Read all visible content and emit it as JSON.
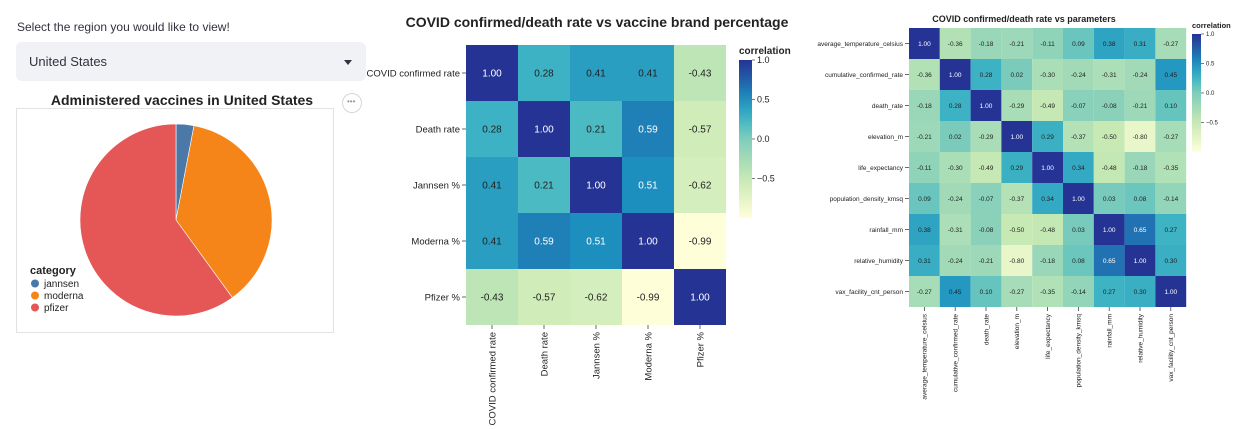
{
  "selector": {
    "label": "Select the region you would like to view!",
    "value": "United States"
  },
  "chart_data": [
    {
      "type": "pie",
      "title": "Administered vaccines in United States",
      "legend_title": "category",
      "legend_position": "bottom-left",
      "slices": [
        {
          "label": "jannsen",
          "value": 3,
          "color": "#4c78a8"
        },
        {
          "label": "moderna",
          "value": 37,
          "color": "#f58518"
        },
        {
          "label": "pfizer",
          "value": 60,
          "color": "#e45756"
        }
      ]
    },
    {
      "type": "heatmap",
      "title": "COVID confirmed/death rate vs vaccine brand percentage",
      "legend_title": "correlation",
      "legend_ticks": [
        "1.0",
        "0.5",
        "0.0",
        "−0.5"
      ],
      "labels": [
        "COVID confirmed rate",
        "Death rate",
        "Jannsen %",
        "Moderna %",
        "Pfizer %"
      ],
      "matrix": [
        [
          1.0,
          0.28,
          0.41,
          0.41,
          -0.43
        ],
        [
          0.28,
          1.0,
          0.21,
          0.59,
          -0.57
        ],
        [
          0.41,
          0.21,
          1.0,
          0.51,
          -0.62
        ],
        [
          0.41,
          0.59,
          0.51,
          1.0,
          -0.99
        ],
        [
          -0.43,
          -0.57,
          -0.62,
          -0.99,
          1.0
        ]
      ]
    },
    {
      "type": "heatmap",
      "title": "COVID confirmed/death rate vs parameters",
      "legend_title": "correlation",
      "legend_ticks": [
        "1.0",
        "0.5",
        "0.0",
        "−0.5"
      ],
      "labels": [
        "average_temperature_celsius",
        "cumulative_confirmed_rate",
        "death_rate",
        "elevation_m",
        "life_expectancy",
        "population_density_kmsq",
        "rainfall_mm",
        "relative_humidity",
        "vax_facility_cnt_person"
      ],
      "matrix": [
        [
          1.0,
          -0.36,
          -0.18,
          -0.21,
          -0.11,
          0.09,
          0.38,
          0.31,
          -0.27
        ],
        [
          -0.36,
          1.0,
          0.28,
          0.02,
          -0.3,
          -0.24,
          -0.31,
          -0.24,
          0.45
        ],
        [
          -0.18,
          0.28,
          1.0,
          -0.29,
          -0.49,
          -0.07,
          -0.08,
          -0.21,
          0.1
        ],
        [
          -0.21,
          0.02,
          -0.29,
          1.0,
          0.29,
          -0.37,
          -0.5,
          -0.8,
          -0.27
        ],
        [
          -0.11,
          -0.3,
          -0.49,
          0.29,
          1.0,
          0.34,
          -0.48,
          -0.18,
          -0.35
        ],
        [
          0.09,
          -0.24,
          -0.07,
          -0.37,
          0.34,
          1.0,
          0.03,
          0.08,
          -0.14
        ],
        [
          0.38,
          -0.31,
          -0.08,
          -0.5,
          -0.48,
          0.03,
          1.0,
          0.65,
          0.27
        ],
        [
          0.31,
          -0.24,
          -0.21,
          -0.8,
          -0.18,
          0.08,
          0.65,
          1.0,
          0.3
        ],
        [
          -0.27,
          0.45,
          0.1,
          -0.27,
          -0.35,
          -0.14,
          0.27,
          0.3,
          1.0
        ]
      ]
    }
  ]
}
